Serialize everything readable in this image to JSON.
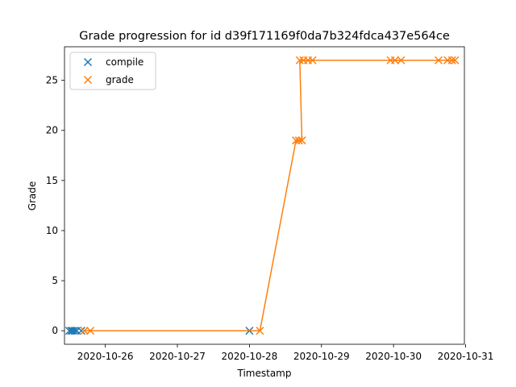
{
  "chart_data": {
    "type": "scatter",
    "title": "Grade progression for id d39f171169f0da7b324fdca437e564ce",
    "xlabel": "Timestamp",
    "ylabel": "Grade",
    "x_range": [
      "2020-10-25T10:24",
      "2020-10-30T23:36"
    ],
    "ylim": [
      -1.35,
      28.35
    ],
    "x_ticks": [
      "2020-10-26",
      "2020-10-27",
      "2020-10-28",
      "2020-10-29",
      "2020-10-30",
      "2020-10-31"
    ],
    "y_ticks": [
      0,
      5,
      10,
      15,
      20,
      25
    ],
    "grid": false,
    "legend_position": "top-left",
    "marker": "x",
    "series": [
      {
        "name": "compile",
        "color": "#1f77b4",
        "line": false,
        "points": [
          {
            "x": "2020-10-25T12:00",
            "y": 0
          },
          {
            "x": "2020-10-25T12:40",
            "y": 0
          },
          {
            "x": "2020-10-25T13:10",
            "y": 0
          },
          {
            "x": "2020-10-25T13:50",
            "y": 0
          },
          {
            "x": "2020-10-25T14:30",
            "y": 0
          },
          {
            "x": "2020-10-25T16:00",
            "y": 0
          },
          {
            "x": "2020-10-28T00:00",
            "y": 0
          }
        ]
      },
      {
        "name": "grade",
        "color": "#ff7f0e",
        "line": true,
        "points": [
          {
            "x": "2020-10-25T17:00",
            "y": 0
          },
          {
            "x": "2020-10-25T19:00",
            "y": 0
          },
          {
            "x": "2020-10-28T03:30",
            "y": 0
          },
          {
            "x": "2020-10-28T15:30",
            "y": 19
          },
          {
            "x": "2020-10-28T16:30",
            "y": 19
          },
          {
            "x": "2020-10-28T17:30",
            "y": 19
          },
          {
            "x": "2020-10-28T16:45",
            "y": 27
          },
          {
            "x": "2020-10-28T18:00",
            "y": 27
          },
          {
            "x": "2020-10-28T19:30",
            "y": 27
          },
          {
            "x": "2020-10-28T21:00",
            "y": 27
          },
          {
            "x": "2020-10-29T23:00",
            "y": 27
          },
          {
            "x": "2020-10-30T00:30",
            "y": 27
          },
          {
            "x": "2020-10-30T02:30",
            "y": 27
          },
          {
            "x": "2020-10-30T15:00",
            "y": 27
          },
          {
            "x": "2020-10-30T18:00",
            "y": 27
          },
          {
            "x": "2020-10-30T19:30",
            "y": 27
          },
          {
            "x": "2020-10-30T20:30",
            "y": 27
          }
        ]
      }
    ]
  }
}
